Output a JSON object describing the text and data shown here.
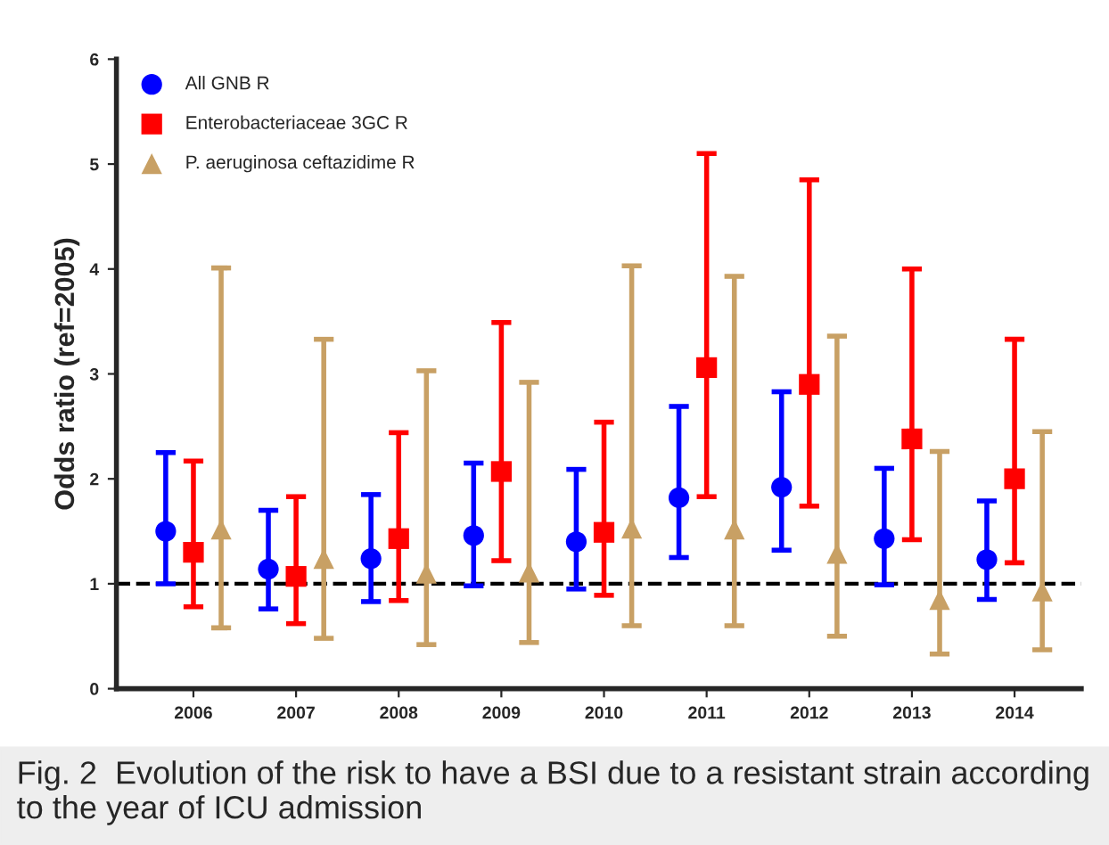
{
  "chart_data": {
    "type": "scatter",
    "ylabel": "Odds ratio (ref=2005)",
    "categories": [
      "2006",
      "2007",
      "2008",
      "2009",
      "2010",
      "2011",
      "2012",
      "2013",
      "2014"
    ],
    "series": [
      {
        "name": "All GNB R",
        "color": "#0000ff",
        "marker": "circle",
        "values": [
          1.5,
          1.14,
          1.24,
          1.46,
          1.4,
          1.82,
          1.92,
          1.43,
          1.23
        ],
        "errors": [
          [
            1.0,
            2.25
          ],
          [
            0.76,
            1.7
          ],
          [
            0.83,
            1.85
          ],
          [
            0.98,
            2.15
          ],
          [
            0.95,
            2.09
          ],
          [
            1.25,
            2.69
          ],
          [
            1.32,
            2.83
          ],
          [
            0.99,
            2.1
          ],
          [
            0.85,
            1.79
          ]
        ]
      },
      {
        "name": "Enterobacteriaceae 3GC R",
        "color": "#ff0000",
        "marker": "square",
        "values": [
          1.3,
          1.07,
          1.43,
          2.07,
          1.49,
          3.06,
          2.9,
          2.38,
          2.0
        ],
        "errors": [
          [
            0.78,
            2.17
          ],
          [
            0.62,
            1.83
          ],
          [
            0.84,
            2.44
          ],
          [
            1.22,
            3.49
          ],
          [
            0.89,
            2.54
          ],
          [
            1.83,
            5.1
          ],
          [
            1.74,
            4.85
          ],
          [
            1.42,
            4.0
          ],
          [
            1.2,
            3.33
          ]
        ]
      },
      {
        "name": "P. aeruginosa ceftazidime R",
        "color": "#c8a064",
        "marker": "triangle",
        "values": [
          1.52,
          1.24,
          1.1,
          1.11,
          1.53,
          1.52,
          1.29,
          0.85,
          0.93
        ],
        "errors": [
          [
            0.58,
            4.01
          ],
          [
            0.48,
            3.33
          ],
          [
            0.42,
            3.03
          ],
          [
            0.44,
            2.92
          ],
          [
            0.6,
            4.03
          ],
          [
            0.6,
            3.93
          ],
          [
            0.5,
            3.36
          ],
          [
            0.33,
            2.26
          ],
          [
            0.37,
            2.45
          ]
        ]
      }
    ],
    "ylim": [
      0,
      6
    ],
    "yticks": [
      0,
      1,
      2,
      3,
      4,
      5,
      6
    ],
    "ref_lines": [
      {
        "axis": "y",
        "value": 1,
        "color": "#000000",
        "line_style": "dashed"
      }
    ],
    "grid": false,
    "legend": "top left",
    "annotations": [
      "Fig. 2  Evolution of the risk to have a BSI due to a resistant strain according to the year of ICU admission"
    ]
  }
}
